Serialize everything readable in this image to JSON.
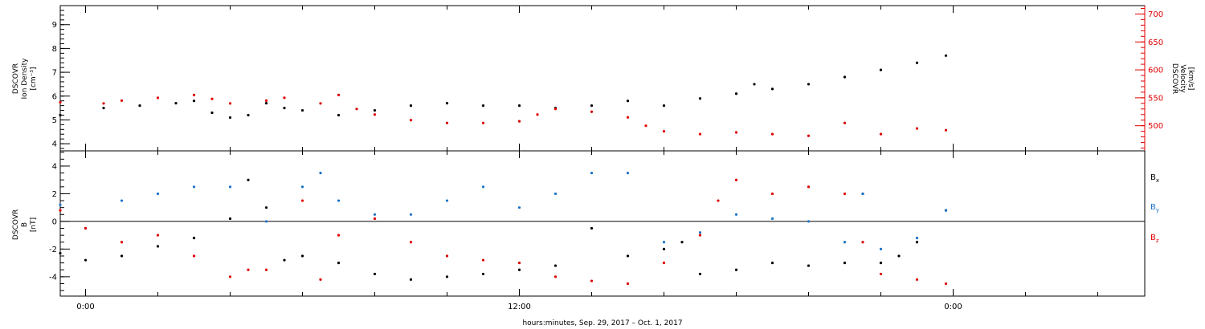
{
  "x_axis": {
    "label": "hours:minutes, Sep. 29, 2017 – Oct.  1, 2017",
    "range_hours": [
      -0.7,
      29.3
    ],
    "major_ticks": [
      {
        "hour": 0,
        "label": "0:00"
      },
      {
        "hour": 12,
        "label": "12:00"
      },
      {
        "hour": 24,
        "label": "0:00"
      }
    ],
    "minor_tick_step_hours": 2
  },
  "chart_data": [
    {
      "type": "scatter",
      "panel": "plasma",
      "left_axis": {
        "label_lines": [
          "DSCOVR",
          "Ion Density",
          "[cm⁻³]"
        ],
        "ylim": [
          3.7,
          9.8
        ],
        "ticks": [
          4,
          5,
          6,
          7,
          8,
          9
        ],
        "color": "#000000"
      },
      "right_axis": {
        "label_lines": [
          "DSCOVR",
          "Velocity",
          "[km/s]"
        ],
        "ylim": [
          455,
          715
        ],
        "ticks": [
          500,
          550,
          600,
          650,
          700
        ],
        "color": "#e00000"
      },
      "series": [
        {
          "key": "density",
          "axis": "left",
          "color": "#000000",
          "x": [
            -0.7,
            0.5,
            1.5,
            2.5,
            3.0,
            3.5,
            4.0,
            4.5,
            5.0,
            5.5,
            6.0,
            7.0,
            8.0,
            9.0,
            10.0,
            11.0,
            12.0,
            13.0,
            14.0,
            15.0,
            16.0,
            17.0,
            18.0,
            18.5,
            19.0,
            20.0,
            21.0,
            22.0,
            23.0,
            23.8
          ],
          "y": [
            5.2,
            5.5,
            5.6,
            5.7,
            5.8,
            5.3,
            5.1,
            5.2,
            5.7,
            5.5,
            5.4,
            5.2,
            5.4,
            5.6,
            5.7,
            5.6,
            5.6,
            5.5,
            5.6,
            5.8,
            5.6,
            5.9,
            6.1,
            6.5,
            6.3,
            6.5,
            6.8,
            7.1,
            7.4,
            7.7
          ]
        },
        {
          "key": "velocity",
          "axis": "right",
          "color": "#e00000",
          "x": [
            -0.7,
            0.5,
            1.0,
            2.0,
            3.0,
            3.5,
            4.0,
            5.0,
            5.5,
            6.5,
            7.0,
            7.5,
            8.0,
            9.0,
            10.0,
            11.0,
            12.0,
            12.5,
            13.0,
            14.0,
            15.0,
            15.5,
            16.0,
            17.0,
            18.0,
            19.0,
            20.0,
            21.0,
            22.0,
            23.0,
            23.8
          ],
          "y": [
            542,
            540,
            545,
            550,
            555,
            548,
            540,
            545,
            550,
            540,
            555,
            530,
            520,
            510,
            505,
            505,
            508,
            520,
            530,
            525,
            515,
            500,
            490,
            485,
            488,
            485,
            482,
            505,
            485,
            495,
            492
          ]
        }
      ]
    },
    {
      "type": "scatter",
      "panel": "magnetic-field",
      "left_axis": {
        "label_lines": [
          "DSCOVR",
          "B",
          "[nT]"
        ],
        "ylim": [
          -5.4,
          5.1
        ],
        "ticks": [
          -4,
          -2,
          0,
          2,
          4
        ],
        "zero_line": true,
        "color": "#000000"
      },
      "legend": [
        {
          "name": "B",
          "sub": "x",
          "color": "#000000"
        },
        {
          "name": "B",
          "sub": "y",
          "color": "#1a73c8"
        },
        {
          "name": "B",
          "sub": "z",
          "color": "#e00000"
        }
      ],
      "series": [
        {
          "key": "bx",
          "color": "#000000",
          "x": [
            -0.7,
            0.0,
            1.0,
            2.0,
            3.0,
            4.0,
            4.5,
            5.0,
            5.5,
            6.0,
            7.0,
            8.0,
            9.0,
            10.0,
            11.0,
            12.0,
            13.0,
            14.0,
            15.0,
            16.0,
            16.5,
            17.0,
            18.0,
            19.0,
            20.0,
            21.0,
            21.5,
            22.0,
            22.5,
            23.0,
            23.8
          ],
          "y": [
            -2.3,
            -2.8,
            -2.5,
            -1.8,
            -1.2,
            0.2,
            3.0,
            1.0,
            -2.8,
            -2.5,
            -3.0,
            -3.8,
            -4.2,
            -4.0,
            -3.8,
            -3.5,
            -3.2,
            -0.5,
            -2.5,
            -2.0,
            -1.5,
            -3.8,
            -3.5,
            -3.0,
            -3.2,
            -3.0,
            2.0,
            -3.0,
            -2.5,
            -1.5,
            0.8
          ]
        },
        {
          "key": "by",
          "color": "#1a73c8",
          "x": [
            -0.7,
            0.0,
            1.0,
            2.0,
            3.0,
            4.0,
            5.0,
            6.0,
            6.5,
            7.0,
            8.0,
            9.0,
            10.0,
            11.0,
            12.0,
            13.0,
            14.0,
            15.0,
            16.0,
            17.0,
            18.0,
            19.0,
            20.0,
            21.0,
            21.5,
            22.0,
            23.0,
            23.8
          ],
          "y": [
            1.2,
            -0.5,
            1.5,
            2.0,
            2.5,
            2.5,
            0.0,
            2.5,
            3.5,
            1.5,
            0.5,
            0.5,
            1.5,
            2.5,
            1.0,
            2.0,
            3.5,
            3.5,
            -1.5,
            -0.8,
            0.5,
            0.2,
            0.0,
            -1.5,
            2.0,
            -2.0,
            -1.2,
            0.8
          ]
        },
        {
          "key": "bz",
          "color": "#e00000",
          "x": [
            -0.7,
            0.0,
            1.0,
            2.0,
            3.0,
            4.0,
            4.5,
            5.0,
            6.0,
            6.5,
            7.0,
            8.0,
            9.0,
            10.0,
            11.0,
            12.0,
            13.0,
            14.0,
            15.0,
            16.0,
            17.0,
            17.5,
            18.0,
            19.0,
            20.0,
            21.0,
            21.5,
            22.0,
            23.0,
            23.8
          ],
          "y": [
            0.8,
            -0.5,
            -1.5,
            -1.0,
            -2.5,
            -4.0,
            -3.5,
            -3.5,
            1.5,
            -4.2,
            -1.0,
            0.2,
            -1.5,
            -2.5,
            -2.8,
            -3.0,
            -4.0,
            -4.3,
            -4.5,
            -3.0,
            -1.0,
            1.5,
            3.0,
            2.0,
            2.5,
            2.0,
            -1.5,
            -3.8,
            -4.2,
            -4.5
          ]
        }
      ]
    }
  ]
}
